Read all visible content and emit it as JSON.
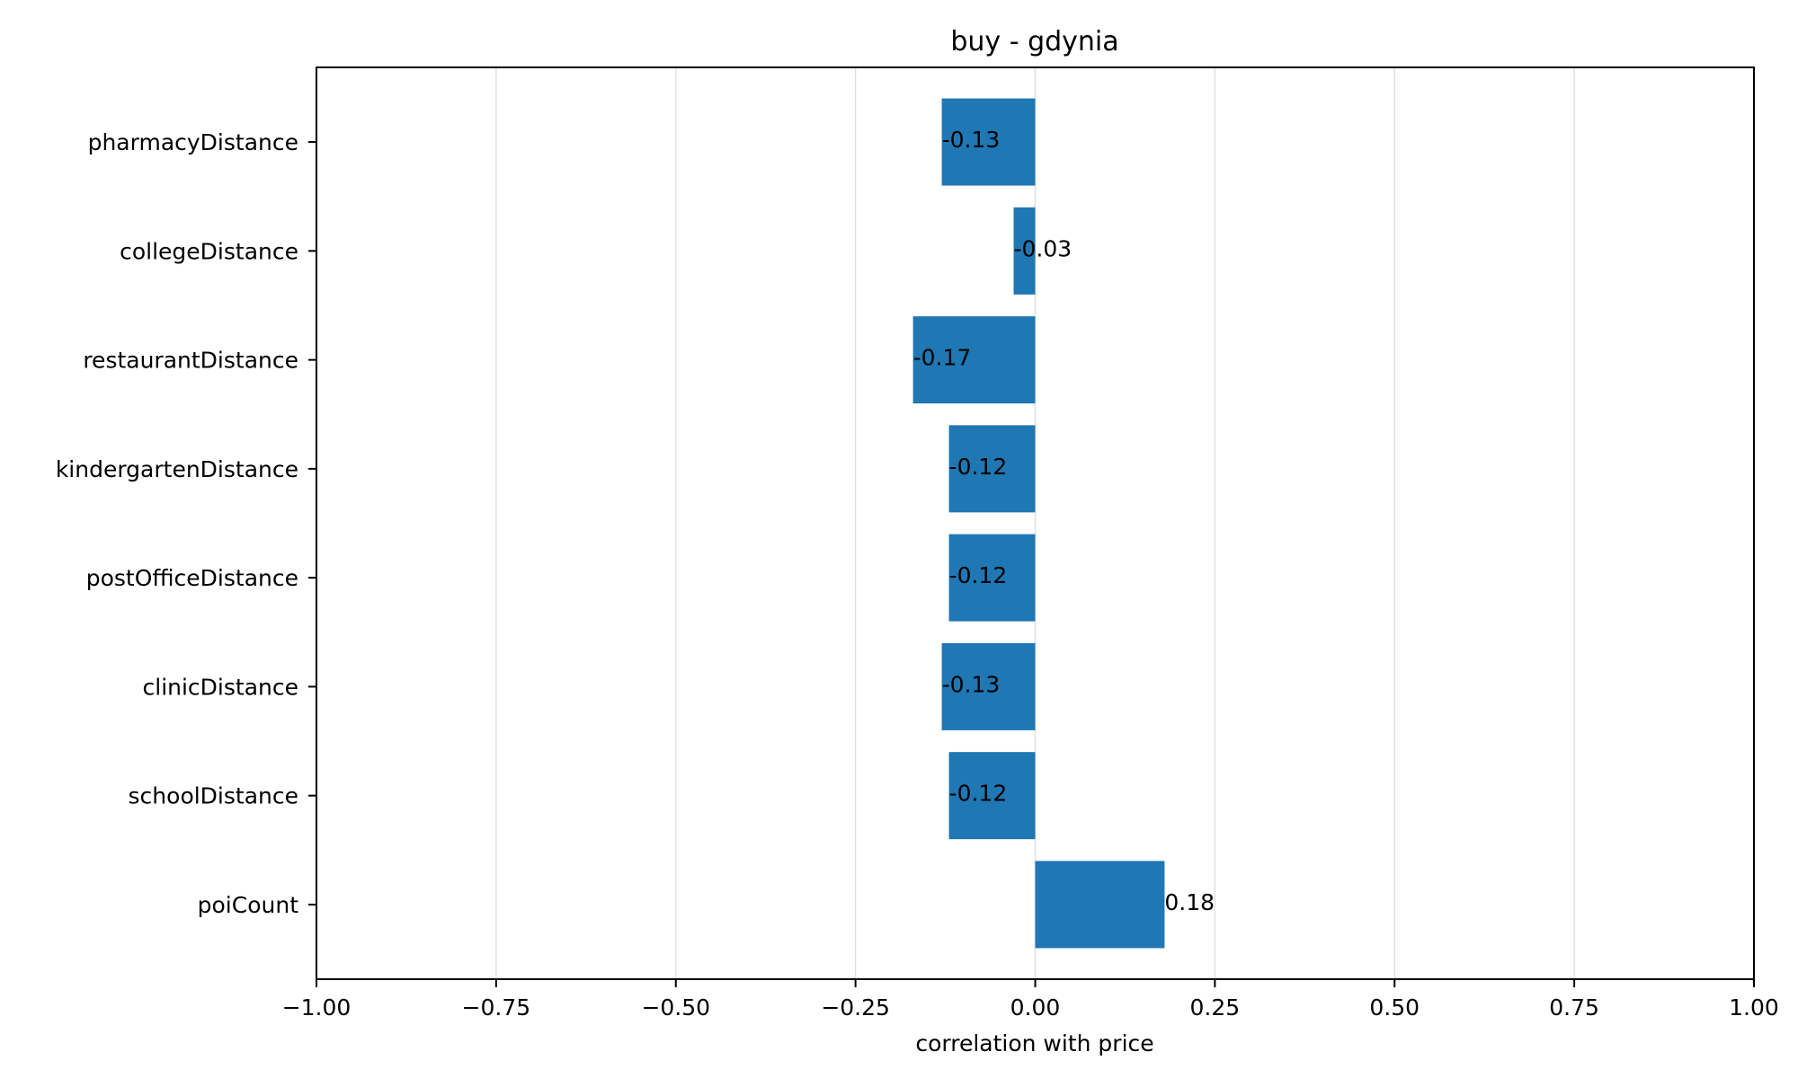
{
  "chart_data": {
    "type": "bar",
    "orientation": "horizontal",
    "title": "buy - gdynia",
    "xlabel": "correlation with price",
    "ylabel": "",
    "xlim": [
      -1.0,
      1.0
    ],
    "xticks": [
      -1.0,
      -0.75,
      -0.5,
      -0.25,
      0.0,
      0.25,
      0.5,
      0.75,
      1.0
    ],
    "xtick_labels": [
      "−1.00",
      "−0.75",
      "−0.50",
      "−0.25",
      "0.00",
      "0.25",
      "0.50",
      "0.75",
      "1.00"
    ],
    "grid": "vertical",
    "categories": [
      "pharmacyDistance",
      "collegeDistance",
      "restaurantDistance",
      "kindergartenDistance",
      "postOfficeDistance",
      "clinicDistance",
      "schoolDistance",
      "poiCount"
    ],
    "values": [
      -0.13,
      -0.03,
      -0.17,
      -0.12,
      -0.12,
      -0.13,
      -0.12,
      0.18
    ],
    "value_labels": [
      "-0.13",
      "-0.03",
      "-0.17",
      "-0.12",
      "-0.12",
      "-0.13",
      "-0.12",
      "0.18"
    ],
    "bar_color": "#1f77b4",
    "grid_color": "#e0e0e0"
  }
}
